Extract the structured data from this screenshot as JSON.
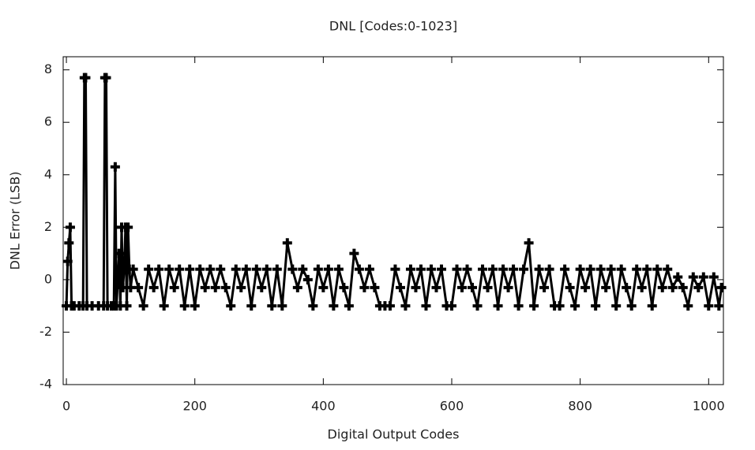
{
  "chart_data": {
    "type": "line",
    "title": "DNL [Codes:0-1023]",
    "xlabel": "Digital Output Codes",
    "ylabel": "DNL Error (LSB)",
    "color": "#000000",
    "x": [
      0,
      2,
      4,
      6,
      8,
      12,
      20,
      26,
      28,
      30,
      32,
      40,
      50,
      58,
      60,
      62,
      64,
      70,
      74,
      76,
      78,
      82,
      84,
      86,
      88,
      90,
      92,
      94,
      96,
      98,
      100,
      104,
      112,
      120,
      128,
      136,
      144,
      152,
      160,
      168,
      176,
      184,
      192,
      200,
      208,
      216,
      224,
      232,
      240,
      248,
      256,
      264,
      272,
      280,
      288,
      296,
      304,
      312,
      320,
      328,
      336,
      344,
      352,
      360,
      368,
      376,
      384,
      392,
      400,
      408,
      416,
      424,
      432,
      440,
      448,
      456,
      464,
      472,
      480,
      488,
      496,
      504,
      512,
      520,
      528,
      536,
      544,
      552,
      560,
      568,
      576,
      584,
      592,
      600,
      608,
      616,
      624,
      632,
      640,
      648,
      656,
      664,
      672,
      680,
      688,
      696,
      704,
      712,
      720,
      728,
      736,
      744,
      752,
      760,
      768,
      776,
      784,
      792,
      800,
      808,
      816,
      824,
      832,
      840,
      848,
      856,
      864,
      872,
      880,
      888,
      896,
      904,
      912,
      920,
      928,
      936,
      944,
      952,
      960,
      968,
      976,
      984,
      992,
      1000,
      1008,
      1016,
      1020
    ],
    "values": [
      -1,
      0.7,
      1.4,
      2,
      -1,
      -1,
      -1,
      -1,
      7.7,
      7.7,
      -1,
      -1,
      -1,
      -1,
      7.7,
      7.7,
      -1,
      -1,
      -1,
      4.3,
      -1,
      1,
      -1,
      2,
      -0.3,
      0.4,
      2,
      -1,
      2,
      0.4,
      -0.3,
      0.4,
      -0.3,
      -1,
      0.4,
      -0.3,
      0.4,
      -1,
      0.4,
      -0.3,
      0.4,
      -1,
      0.4,
      -1,
      0.4,
      -0.3,
      0.4,
      -0.3,
      0.4,
      -0.3,
      -1,
      0.4,
      -0.3,
      0.4,
      -1,
      0.4,
      -0.3,
      0.4,
      -1,
      0.4,
      -1,
      1.4,
      0.4,
      -0.3,
      0.4,
      0,
      -1,
      0.4,
      -0.3,
      0.4,
      -1,
      0.4,
      -0.3,
      -1,
      1,
      0.4,
      -0.3,
      0.4,
      -0.3,
      -1,
      -1,
      -1,
      0.4,
      -0.3,
      -1,
      0.4,
      -0.3,
      0.4,
      -1,
      0.4,
      -0.3,
      0.4,
      -1,
      -1,
      0.4,
      -0.3,
      0.4,
      -0.3,
      -1,
      0.4,
      -0.3,
      0.4,
      -1,
      0.4,
      -0.3,
      0.4,
      -1,
      0.4,
      1.4,
      -1,
      0.4,
      -0.3,
      0.4,
      -1,
      -1,
      0.4,
      -0.3,
      -1,
      0.4,
      -0.3,
      0.4,
      -1,
      0.4,
      -0.3,
      0.4,
      -1,
      0.4,
      -0.3,
      -1,
      0.4,
      -0.3,
      0.4,
      -1,
      0.4,
      -0.3,
      0.4,
      -0.3,
      0.1,
      -0.3,
      -1,
      0.1,
      -0.3,
      0.1,
      -1,
      0.1,
      -1,
      -0.3
    ],
    "xlim": [
      -5,
      1023
    ],
    "xticks": [
      0,
      200,
      400,
      600,
      800,
      1000
    ],
    "ylim": [
      -4,
      8.5
    ],
    "yticks": [
      -4,
      -2,
      0,
      2,
      4,
      6,
      8
    ]
  }
}
